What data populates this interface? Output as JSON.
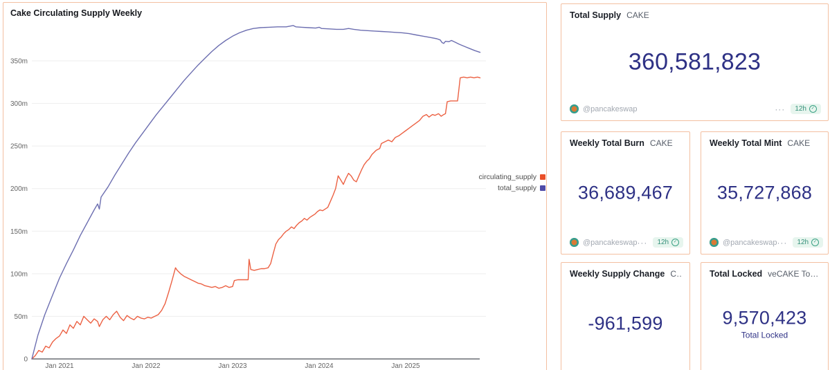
{
  "chart_data": {
    "type": "line",
    "title": "Cake Circulating Supply Weekly",
    "xlabel": "",
    "ylabel": "",
    "grid": true,
    "legend_position": "right",
    "ylim_millions": [
      0,
      400
    ],
    "y_ticks": [
      {
        "v": 0,
        "label": "0"
      },
      {
        "v": 50,
        "label": "50m"
      },
      {
        "v": 100,
        "label": "100m"
      },
      {
        "v": 150,
        "label": "150m"
      },
      {
        "v": 200,
        "label": "200m"
      },
      {
        "v": 250,
        "label": "250m"
      },
      {
        "v": 300,
        "label": "300m"
      },
      {
        "v": 350,
        "label": "350m"
      }
    ],
    "x_ticks": [
      {
        "t": 2021,
        "label": "Jan 2021"
      },
      {
        "t": 2022,
        "label": "Jan 2022"
      },
      {
        "t": 2023,
        "label": "Jan 2023"
      },
      {
        "t": 2024,
        "label": "Jan 2024"
      },
      {
        "t": 2025,
        "label": "Jan 2025"
      }
    ],
    "series": [
      {
        "name": "circulating_supply",
        "color": "#ec6143",
        "swatch_color": "#ea4f28",
        "unit": "millions",
        "points": [
          [
            2020.68,
            0
          ],
          [
            2020.72,
            4
          ],
          [
            2020.76,
            10
          ],
          [
            2020.8,
            8
          ],
          [
            2020.84,
            15
          ],
          [
            2020.88,
            13
          ],
          [
            2020.92,
            20
          ],
          [
            2020.96,
            24
          ],
          [
            2021.0,
            27
          ],
          [
            2021.04,
            34
          ],
          [
            2021.08,
            30
          ],
          [
            2021.12,
            40
          ],
          [
            2021.16,
            36
          ],
          [
            2021.2,
            44
          ],
          [
            2021.24,
            40
          ],
          [
            2021.28,
            50
          ],
          [
            2021.32,
            46
          ],
          [
            2021.36,
            42
          ],
          [
            2021.4,
            47
          ],
          [
            2021.44,
            44
          ],
          [
            2021.46,
            38
          ],
          [
            2021.5,
            46
          ],
          [
            2021.54,
            50
          ],
          [
            2021.58,
            46
          ],
          [
            2021.62,
            52
          ],
          [
            2021.66,
            56
          ],
          [
            2021.7,
            49
          ],
          [
            2021.74,
            45
          ],
          [
            2021.78,
            51
          ],
          [
            2021.82,
            48
          ],
          [
            2021.86,
            46
          ],
          [
            2021.9,
            50
          ],
          [
            2021.94,
            48
          ],
          [
            2021.98,
            47
          ],
          [
            2022.02,
            49
          ],
          [
            2022.06,
            48
          ],
          [
            2022.1,
            50
          ],
          [
            2022.14,
            52
          ],
          [
            2022.18,
            57
          ],
          [
            2022.22,
            65
          ],
          [
            2022.26,
            78
          ],
          [
            2022.3,
            92
          ],
          [
            2022.34,
            107
          ],
          [
            2022.36,
            104
          ],
          [
            2022.4,
            100
          ],
          [
            2022.44,
            97
          ],
          [
            2022.48,
            95
          ],
          [
            2022.52,
            93
          ],
          [
            2022.56,
            91
          ],
          [
            2022.6,
            89
          ],
          [
            2022.64,
            88
          ],
          [
            2022.68,
            86
          ],
          [
            2022.72,
            85
          ],
          [
            2022.76,
            84
          ],
          [
            2022.8,
            85
          ],
          [
            2022.84,
            83
          ],
          [
            2022.88,
            84
          ],
          [
            2022.92,
            86
          ],
          [
            2022.96,
            84
          ],
          [
            2023.0,
            85
          ],
          [
            2023.02,
            92
          ],
          [
            2023.06,
            93
          ],
          [
            2023.1,
            93
          ],
          [
            2023.14,
            93
          ],
          [
            2023.18,
            93
          ],
          [
            2023.19,
            117
          ],
          [
            2023.21,
            105
          ],
          [
            2023.25,
            104
          ],
          [
            2023.29,
            105
          ],
          [
            2023.33,
            106
          ],
          [
            2023.37,
            106
          ],
          [
            2023.41,
            107
          ],
          [
            2023.44,
            112
          ],
          [
            2023.47,
            124
          ],
          [
            2023.5,
            135
          ],
          [
            2023.53,
            140
          ],
          [
            2023.56,
            143
          ],
          [
            2023.59,
            147
          ],
          [
            2023.62,
            150
          ],
          [
            2023.65,
            152
          ],
          [
            2023.68,
            155
          ],
          [
            2023.71,
            153
          ],
          [
            2023.74,
            157
          ],
          [
            2023.77,
            160
          ],
          [
            2023.8,
            162
          ],
          [
            2023.83,
            165
          ],
          [
            2023.86,
            163
          ],
          [
            2023.89,
            166
          ],
          [
            2023.92,
            168
          ],
          [
            2023.95,
            170
          ],
          [
            2023.98,
            173
          ],
          [
            2024.01,
            175
          ],
          [
            2024.04,
            174
          ],
          [
            2024.07,
            176
          ],
          [
            2024.1,
            178
          ],
          [
            2024.13,
            185
          ],
          [
            2024.16,
            192
          ],
          [
            2024.19,
            200
          ],
          [
            2024.22,
            215
          ],
          [
            2024.25,
            210
          ],
          [
            2024.28,
            205
          ],
          [
            2024.31,
            212
          ],
          [
            2024.34,
            218
          ],
          [
            2024.37,
            215
          ],
          [
            2024.4,
            210
          ],
          [
            2024.43,
            208
          ],
          [
            2024.46,
            215
          ],
          [
            2024.49,
            222
          ],
          [
            2024.52,
            228
          ],
          [
            2024.55,
            232
          ],
          [
            2024.58,
            235
          ],
          [
            2024.61,
            240
          ],
          [
            2024.66,
            245
          ],
          [
            2024.7,
            247
          ],
          [
            2024.72,
            253
          ],
          [
            2024.76,
            255
          ],
          [
            2024.8,
            257
          ],
          [
            2024.84,
            255
          ],
          [
            2024.88,
            260
          ],
          [
            2024.92,
            262
          ],
          [
            2024.96,
            265
          ],
          [
            2025.0,
            268
          ],
          [
            2025.04,
            271
          ],
          [
            2025.08,
            274
          ],
          [
            2025.12,
            277
          ],
          [
            2025.16,
            280
          ],
          [
            2025.2,
            285
          ],
          [
            2025.24,
            287
          ],
          [
            2025.27,
            284
          ],
          [
            2025.31,
            287
          ],
          [
            2025.34,
            286
          ],
          [
            2025.38,
            288
          ],
          [
            2025.41,
            285
          ],
          [
            2025.44,
            287
          ],
          [
            2025.46,
            288
          ],
          [
            2025.48,
            302
          ],
          [
            2025.52,
            303
          ],
          [
            2025.56,
            303
          ],
          [
            2025.6,
            303
          ],
          [
            2025.63,
            330
          ],
          [
            2025.67,
            331
          ],
          [
            2025.71,
            330
          ],
          [
            2025.75,
            331
          ],
          [
            2025.79,
            330
          ],
          [
            2025.83,
            331
          ],
          [
            2025.86,
            330
          ]
        ]
      },
      {
        "name": "total_supply",
        "color": "#6c6eb0",
        "swatch_color": "#4f4ba8",
        "unit": "millions",
        "points": [
          [
            2020.68,
            0
          ],
          [
            2020.75,
            28
          ],
          [
            2020.83,
            52
          ],
          [
            2020.92,
            75
          ],
          [
            2021.0,
            95
          ],
          [
            2021.08,
            112
          ],
          [
            2021.16,
            128
          ],
          [
            2021.24,
            145
          ],
          [
            2021.32,
            160
          ],
          [
            2021.4,
            175
          ],
          [
            2021.44,
            182
          ],
          [
            2021.46,
            176
          ],
          [
            2021.48,
            190
          ],
          [
            2021.56,
            202
          ],
          [
            2021.64,
            216
          ],
          [
            2021.72,
            229
          ],
          [
            2021.8,
            242
          ],
          [
            2021.88,
            254
          ],
          [
            2021.96,
            265
          ],
          [
            2022.04,
            276
          ],
          [
            2022.12,
            287
          ],
          [
            2022.2,
            297
          ],
          [
            2022.28,
            307
          ],
          [
            2022.36,
            317
          ],
          [
            2022.44,
            327
          ],
          [
            2022.52,
            336
          ],
          [
            2022.6,
            345
          ],
          [
            2022.68,
            353
          ],
          [
            2022.76,
            361
          ],
          [
            2022.84,
            368
          ],
          [
            2022.92,
            374
          ],
          [
            2023.0,
            379
          ],
          [
            2023.08,
            383
          ],
          [
            2023.16,
            386
          ],
          [
            2023.24,
            388
          ],
          [
            2023.32,
            389
          ],
          [
            2023.42,
            389.5
          ],
          [
            2023.52,
            390
          ],
          [
            2023.62,
            390
          ],
          [
            2023.7,
            391.5
          ],
          [
            2023.73,
            390
          ],
          [
            2023.8,
            389.5
          ],
          [
            2023.88,
            389
          ],
          [
            2023.96,
            388.5
          ],
          [
            2024.0,
            389.5
          ],
          [
            2024.03,
            388
          ],
          [
            2024.12,
            387.5
          ],
          [
            2024.2,
            387
          ],
          [
            2024.28,
            387
          ],
          [
            2024.34,
            388
          ],
          [
            2024.4,
            387
          ],
          [
            2024.48,
            386
          ],
          [
            2024.56,
            385.5
          ],
          [
            2024.64,
            385
          ],
          [
            2024.72,
            384.5
          ],
          [
            2024.8,
            384
          ],
          [
            2024.88,
            383.5
          ],
          [
            2024.96,
            383
          ],
          [
            2025.04,
            382
          ],
          [
            2025.12,
            380.5
          ],
          [
            2025.2,
            379
          ],
          [
            2025.28,
            377.5
          ],
          [
            2025.36,
            376
          ],
          [
            2025.4,
            374.5
          ],
          [
            2025.42,
            371.5
          ],
          [
            2025.44,
            370.5
          ],
          [
            2025.46,
            373
          ],
          [
            2025.5,
            372.5
          ],
          [
            2025.53,
            374
          ],
          [
            2025.57,
            372
          ],
          [
            2025.62,
            369.5
          ],
          [
            2025.68,
            367
          ],
          [
            2025.74,
            364.5
          ],
          [
            2025.8,
            362
          ],
          [
            2025.86,
            360
          ]
        ]
      }
    ]
  },
  "cards": [
    {
      "title": "Total Supply",
      "subtitle": "CAKE",
      "value": "360,581,823",
      "footer": {
        "account": "@pancakeswap",
        "menu": "···",
        "badge": "12h"
      }
    },
    {
      "title": "Weekly Total Burn",
      "subtitle": "CAKE",
      "value": "36,689,467",
      "footer": {
        "account": "@pancakeswap",
        "menu": "···",
        "badge": "12h"
      }
    },
    {
      "title": "Weekly Total Mint",
      "subtitle": "CAKE",
      "value": "35,727,868",
      "footer": {
        "account": "@pancakeswap",
        "menu": "···",
        "badge": "12h"
      }
    },
    {
      "title": "Weekly Supply Change",
      "subtitle": "CAKE",
      "value": "-961,599"
    },
    {
      "title": "Total Locked",
      "subtitle": "veCAKE Total Locked …",
      "value": "9,570,423",
      "caption": "Total Locked"
    }
  ],
  "icons": {
    "check": "✓"
  },
  "colors": {
    "card_border": "#f3bfa0",
    "stat_value": "#2e3185",
    "badge_bg": "#e7f5ee",
    "badge_text": "#36917a",
    "axis": "#4a4f58",
    "gridline": "#ededed",
    "tick_label": "#636363"
  }
}
